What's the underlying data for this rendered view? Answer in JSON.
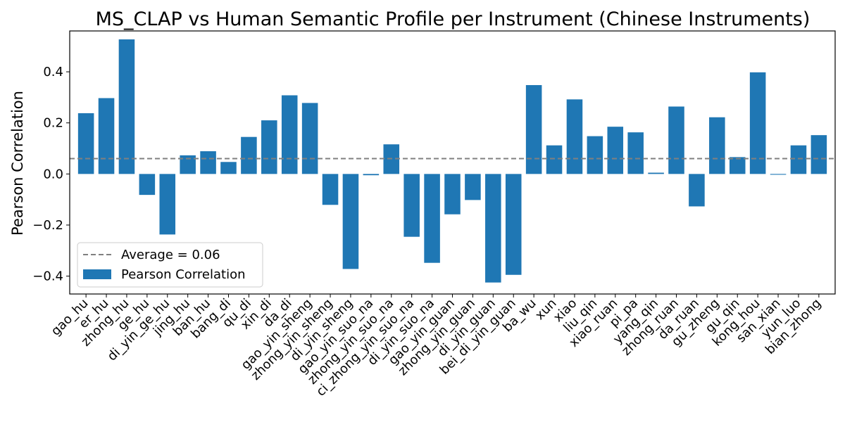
{
  "chart_data": {
    "type": "bar",
    "title": "MS_CLAP vs Human Semantic Profile per Instrument (Chinese Instruments)",
    "xlabel": "",
    "ylabel": "Pearson Correlation",
    "ylim": [
      -0.47,
      0.56
    ],
    "yticks": [
      -0.4,
      -0.2,
      0.0,
      0.2,
      0.4
    ],
    "ytick_labels": [
      "−0.4",
      "−0.2",
      "0.0",
      "0.2",
      "0.4"
    ],
    "bar_color": "#1f77b4",
    "average": 0.06,
    "average_line_color": "#808080",
    "legend_position": "lower-left",
    "legend": [
      "Average = 0.06",
      "Pearson Correlation"
    ],
    "categories": [
      "gao_hu",
      "er_hu",
      "zhong_hu",
      "ge_hu",
      "di_yin_ge_hu",
      "jing_hu",
      "ban_hu",
      "bang_di",
      "qu_di",
      "xin_di",
      "da_di",
      "gao_yin_sheng",
      "zhong_yin_sheng",
      "di_yin_sheng",
      "gao_yin_suo_na",
      "zhong_yin_suo_na",
      "ci_zhong_yin_suo_na",
      "di_yin_suo_na",
      "gao_yin_guan",
      "zhong_yin_guan",
      "di_yin_guan",
      "bei_di_yin_guan",
      "ba_wu",
      "xun",
      "xiao",
      "liu_qin",
      "xiao_ruan",
      "pi_pa",
      "yang_qin",
      "zhong_ruan",
      "da_ruan",
      "gu_zheng",
      "gu_qin",
      "kong_hou",
      "san_xian",
      "yun_luo",
      "bian_zhong"
    ],
    "values": [
      0.238,
      0.297,
      0.527,
      -0.082,
      -0.237,
      0.073,
      0.089,
      0.047,
      0.145,
      0.21,
      0.308,
      0.278,
      -0.121,
      -0.372,
      -0.005,
      0.116,
      -0.246,
      -0.348,
      -0.158,
      -0.102,
      -0.425,
      -0.395,
      0.348,
      0.112,
      0.292,
      0.148,
      0.185,
      0.163,
      0.005,
      0.264,
      -0.127,
      0.222,
      0.066,
      0.398,
      -0.003,
      0.112,
      0.152
    ]
  }
}
